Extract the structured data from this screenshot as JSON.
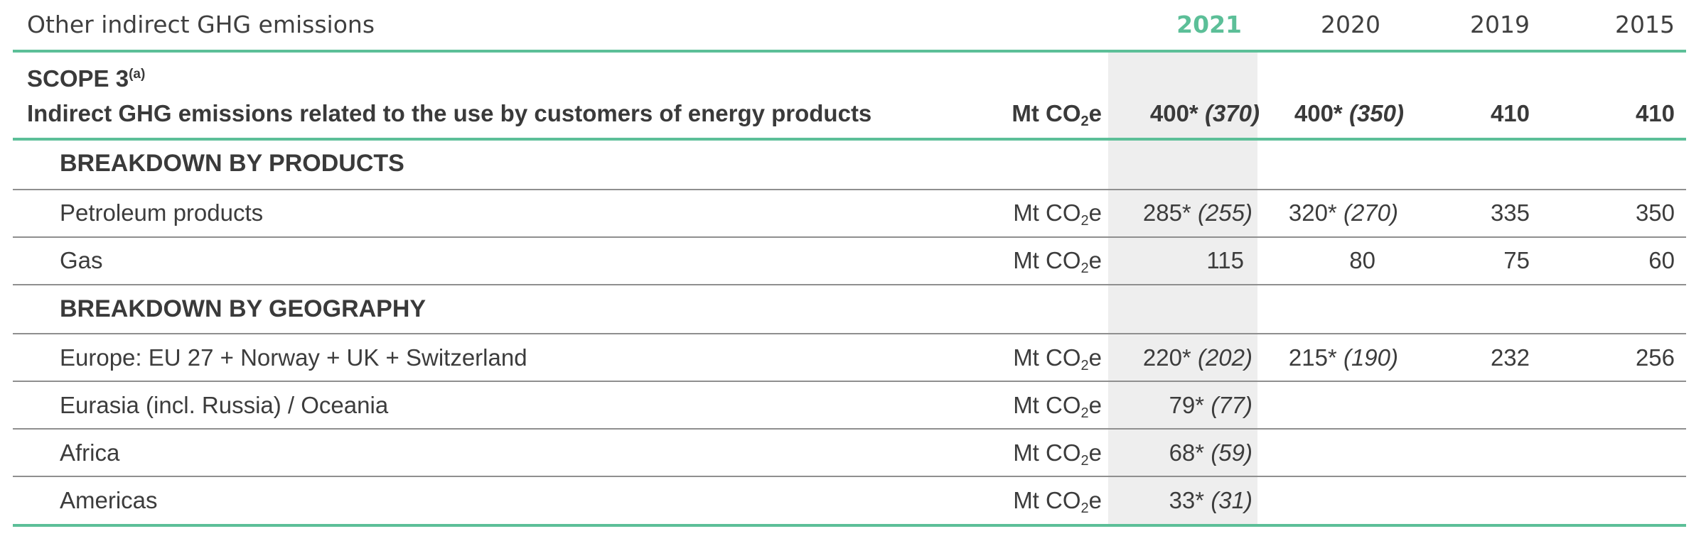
{
  "table": {
    "title": "Other indirect GHG emissions",
    "years": [
      "2021",
      "2020",
      "2019",
      "2015"
    ],
    "scope": {
      "label": "SCOPE 3",
      "footnote": "(a)",
      "description": "Indirect GHG emissions related to the use by customers of energy products",
      "unit": {
        "pre": "Mt CO",
        "sub": "2",
        "post": "e"
      },
      "values": [
        {
          "main": "400*",
          "paren": "(370)"
        },
        {
          "main": "400*",
          "paren": "(350)"
        },
        {
          "main": "410",
          "paren": ""
        },
        {
          "main": "410",
          "paren": ""
        }
      ]
    },
    "sections": [
      {
        "heading": "BREAKDOWN BY PRODUCTS",
        "rows": [
          {
            "label": "Petroleum products",
            "values": [
              {
                "main": "285*",
                "paren": "(255)"
              },
              {
                "main": "320*",
                "paren": "(270)"
              },
              {
                "main": "335",
                "paren": ""
              },
              {
                "main": "350",
                "paren": ""
              }
            ]
          },
          {
            "label": "Gas",
            "values": [
              {
                "main": "115",
                "paren": ""
              },
              {
                "main": "80",
                "paren": ""
              },
              {
                "main": "75",
                "paren": ""
              },
              {
                "main": "60",
                "paren": ""
              }
            ]
          }
        ]
      },
      {
        "heading": "BREAKDOWN BY GEOGRAPHY",
        "rows": [
          {
            "label": "Europe: EU 27 + Norway + UK + Switzerland",
            "values": [
              {
                "main": "220*",
                "paren": "(202)"
              },
              {
                "main": "215*",
                "paren": "(190)"
              },
              {
                "main": "232",
                "paren": ""
              },
              {
                "main": "256",
                "paren": ""
              }
            ]
          },
          {
            "label": "Eurasia (incl. Russia) / Oceania",
            "values": [
              {
                "main": "79*",
                "paren": "(77)"
              },
              {
                "main": "",
                "paren": ""
              },
              {
                "main": "",
                "paren": ""
              },
              {
                "main": "",
                "paren": ""
              }
            ]
          },
          {
            "label": "Africa",
            "values": [
              {
                "main": "68*",
                "paren": "(59)"
              },
              {
                "main": "",
                "paren": ""
              },
              {
                "main": "",
                "paren": ""
              },
              {
                "main": "",
                "paren": ""
              }
            ]
          },
          {
            "label": "Americas",
            "values": [
              {
                "main": "33*",
                "paren": "(31)"
              },
              {
                "main": "",
                "paren": ""
              },
              {
                "main": "",
                "paren": ""
              },
              {
                "main": "",
                "paren": ""
              }
            ]
          }
        ]
      }
    ],
    "colors": {
      "accent": "#5cbf98",
      "highlight_column": "#eeeeee",
      "rule": "#8f8f8f"
    }
  }
}
